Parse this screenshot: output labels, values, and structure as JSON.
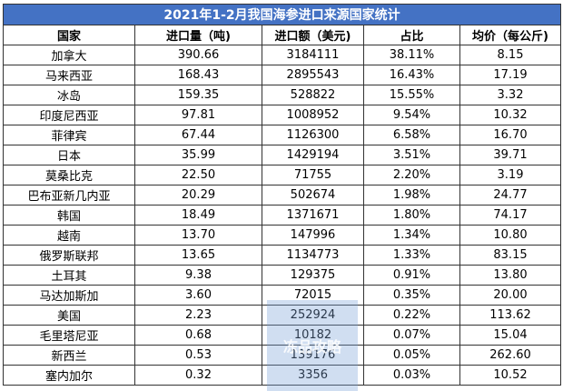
{
  "table": {
    "title": "2021年1-2月我国海参进口来源国家统计",
    "header": [
      "国家",
      "进口量（吨)",
      "进口额（美元)",
      "占比",
      "均价（每公斤)"
    ],
    "rows": [
      [
        "加拿大",
        "390.66",
        "3184111",
        "38.11%",
        "8.15"
      ],
      [
        "马来西亚",
        "168.43",
        "2895543",
        "16.43%",
        "17.19"
      ],
      [
        "冰岛",
        "159.35",
        "528822",
        "15.55%",
        "3.32"
      ],
      [
        "印度尼西亚",
        "97.81",
        "1008952",
        "9.54%",
        "10.32"
      ],
      [
        "菲律宾",
        "67.44",
        "1126300",
        "6.58%",
        "16.70"
      ],
      [
        "日本",
        "35.99",
        "1429194",
        "3.51%",
        "39.71"
      ],
      [
        "莫桑比克",
        "22.50",
        "71755",
        "2.20%",
        "3.19"
      ],
      [
        "巴布亚新几内亚",
        "20.29",
        "502674",
        "1.98%",
        "24.77"
      ],
      [
        "韩国",
        "18.49",
        "1371671",
        "1.80%",
        "74.17"
      ],
      [
        "越南",
        "13.70",
        "147996",
        "1.34%",
        "10.80"
      ],
      [
        "俄罗斯联邦",
        "13.65",
        "1134773",
        "1.33%",
        "83.15"
      ],
      [
        "土耳其",
        "9.38",
        "129375",
        "0.91%",
        "13.80"
      ],
      [
        "马达加斯加",
        "3.60",
        "72015",
        "0.35%",
        "20.00"
      ],
      [
        "美国",
        "2.23",
        "252924",
        "0.22%",
        "113.62"
      ],
      [
        "毛里塔尼亚",
        "0.68",
        "10182",
        "0.07%",
        "15.04"
      ],
      [
        "新西兰",
        "0.53",
        "139176",
        "0.05%",
        "262.60"
      ],
      [
        "塞内加尔",
        "0.32",
        "3356",
        "0.03%",
        "10.52"
      ]
    ]
  },
  "watermark": "冻品攻略"
}
